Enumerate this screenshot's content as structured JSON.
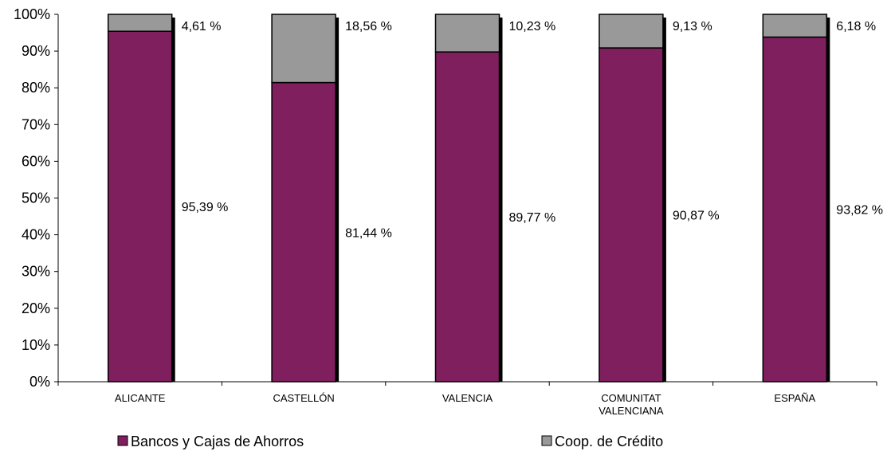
{
  "chart_data": {
    "type": "bar",
    "stacked": true,
    "percent_stacked": true,
    "categories": [
      "ALICANTE",
      "CASTELLÓN",
      "VALENCIA",
      "COMUNITAT VALENCIANA",
      "ESPAÑA"
    ],
    "series": [
      {
        "name": "Bancos y Cajas de Ahorros",
        "color": "#7F1F5E",
        "values": [
          95.39,
          81.44,
          89.77,
          90.87,
          93.82
        ],
        "labels": [
          "95,39 %",
          "81,44 %",
          "89,77 %",
          "90,87 %",
          "93,82 %"
        ]
      },
      {
        "name": "Coop. de Crédito",
        "color": "#999999",
        "values": [
          4.61,
          18.56,
          10.23,
          9.13,
          6.18
        ],
        "labels": [
          "4,61 %",
          "18,56 %",
          "10,23 %",
          "9,13 %",
          "6,18 %"
        ]
      }
    ],
    "ylim": [
      0,
      100
    ],
    "yticks": [
      "0%",
      "10%",
      "20%",
      "30%",
      "40%",
      "50%",
      "60%",
      "70%",
      "80%",
      "90%",
      "100%"
    ],
    "grid": false,
    "legend_position": "bottom"
  }
}
